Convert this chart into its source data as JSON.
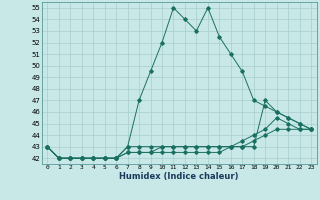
{
  "xlabel": "Humidex (Indice chaleur)",
  "bg_color": "#c8e8e8",
  "line_color": "#1a7060",
  "grid_color": "#a8cccc",
  "xlim": [
    -0.5,
    23.5
  ],
  "ylim": [
    41.5,
    55.5
  ],
  "yticks": [
    42,
    43,
    44,
    45,
    46,
    47,
    48,
    49,
    50,
    51,
    52,
    53,
    54,
    55
  ],
  "xticks": [
    0,
    1,
    2,
    3,
    4,
    5,
    6,
    7,
    8,
    9,
    10,
    11,
    12,
    13,
    14,
    15,
    16,
    17,
    18,
    19,
    20,
    21,
    22,
    23
  ],
  "lines": [
    {
      "x": [
        0,
        1,
        2,
        3,
        4,
        5,
        6,
        7,
        8,
        9,
        10,
        11,
        12,
        13,
        14,
        15,
        16,
        17,
        18,
        19,
        20,
        21,
        22,
        23
      ],
      "y": [
        43,
        42,
        42,
        42,
        42,
        42,
        42,
        43,
        47,
        49.5,
        52,
        55,
        54,
        53,
        55,
        52.5,
        51,
        49.5,
        47,
        46.5,
        46,
        45.5,
        45,
        44.5
      ]
    },
    {
      "x": [
        0,
        1,
        2,
        3,
        4,
        5,
        6,
        7,
        8,
        9,
        10,
        11,
        12,
        13,
        14,
        15,
        16,
        17,
        18,
        19,
        20,
        21,
        22,
        23
      ],
      "y": [
        43,
        42,
        42,
        42,
        42,
        42,
        42,
        43,
        43,
        43,
        43,
        43,
        43,
        43,
        43,
        43,
        43,
        43,
        43,
        47,
        46,
        45.5,
        45,
        44.5
      ]
    },
    {
      "x": [
        0,
        1,
        2,
        3,
        4,
        5,
        6,
        7,
        8,
        9,
        10,
        11,
        12,
        13,
        14,
        15,
        16,
        17,
        18,
        19,
        20,
        21,
        22,
        23
      ],
      "y": [
        43,
        42,
        42,
        42,
        42,
        42,
        42,
        42.5,
        42.5,
        42.5,
        42.5,
        42.5,
        42.5,
        42.5,
        42.5,
        42.5,
        43,
        43.5,
        44,
        44.5,
        45.5,
        45,
        44.5,
        44.5
      ]
    },
    {
      "x": [
        0,
        1,
        2,
        3,
        4,
        5,
        6,
        7,
        8,
        9,
        10,
        11,
        12,
        13,
        14,
        15,
        16,
        17,
        18,
        19,
        20,
        21,
        22,
        23
      ],
      "y": [
        43,
        42,
        42,
        42,
        42,
        42,
        42,
        42.5,
        42.5,
        42.5,
        43,
        43,
        43,
        43,
        43,
        43,
        43,
        43,
        43.5,
        44,
        44.5,
        44.5,
        44.5,
        44.5
      ]
    }
  ]
}
